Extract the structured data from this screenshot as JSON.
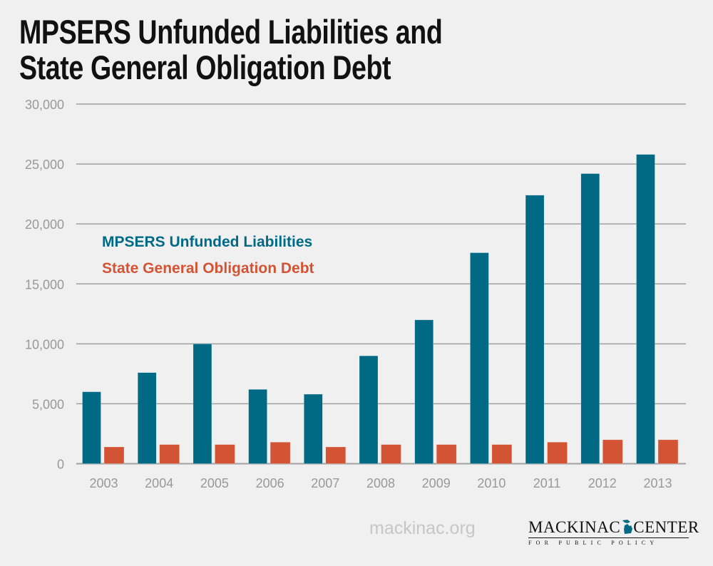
{
  "title_lines": [
    "MPSERS Unfunded Liabilities and",
    "State General Obligation Debt"
  ],
  "footer": {
    "site": "mackinac.org",
    "logo_name_left": "MACKINAC",
    "logo_name_right": "CENTER",
    "logo_sub": "FOR PUBLIC POLICY"
  },
  "chart_data": {
    "type": "bar",
    "title": "MPSERS Unfunded Liabilities and State General Obligation Debt",
    "xlabel": "",
    "ylabel": "",
    "categories": [
      "2003",
      "2004",
      "2005",
      "2006",
      "2007",
      "2008",
      "2009",
      "2010",
      "2011",
      "2012",
      "2013"
    ],
    "series": [
      {
        "name": "MPSERS Unfunded Liabilities",
        "color": "#006a85",
        "values": [
          6000,
          7600,
          10000,
          6200,
          5800,
          9000,
          12000,
          17600,
          22400,
          24200,
          25800
        ]
      },
      {
        "name": "State General Obligation Debt",
        "color": "#d35434",
        "values": [
          1400,
          1600,
          1600,
          1800,
          1400,
          1600,
          1600,
          1600,
          1800,
          2000,
          2000
        ]
      }
    ],
    "ylim": [
      0,
      30000
    ],
    "yticks": [
      0,
      5000,
      10000,
      15000,
      20000,
      25000,
      30000
    ],
    "ytick_labels": [
      "0",
      "5,000",
      "10,000",
      "15,000",
      "20,000",
      "25,000",
      "30,000"
    ],
    "grid": true,
    "legend_position": "upper-left inside plot"
  }
}
